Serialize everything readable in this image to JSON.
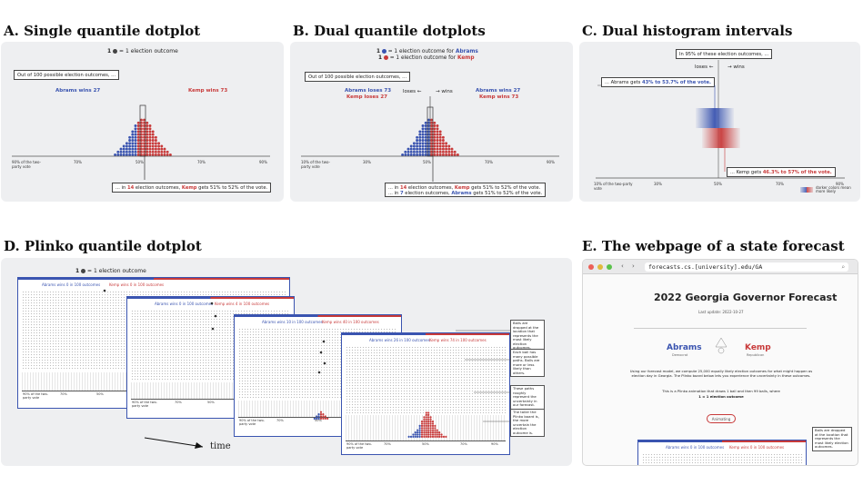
{
  "titles": {
    "a": "A. Single quantile dotplot",
    "b": "B. Dual quantile dotplots",
    "c": "C. Dual histogram intervals",
    "d": "D. Plinko quantile dotplot",
    "e": "E. The webpage of a state forecast"
  },
  "panel_a": {
    "legend": "= 1 election outcome",
    "legend_num": "1",
    "prompt": "Out of 100 possible election outcomes, ...",
    "abrams_wins": "Abrams wins 27",
    "kemp_wins": "Kemp wins 73",
    "ticks": [
      "90% of the two-party vote",
      "70%",
      "50%",
      "70%",
      "90%"
    ],
    "callout_pre": "... in",
    "callout_num": "14",
    "callout_mid": "election outcomes,",
    "callout_name": "Kemp",
    "callout_post": "gets 51% to 52% of the vote."
  },
  "panel_b": {
    "legend1_pre": "= 1 election outcome for",
    "legend1_name": "Abrams",
    "legend2_pre": "= 1 election outcome for",
    "legend2_name": "Kemp",
    "legend_num": "1",
    "prompt": "Out of 100 possible election outcomes, ...",
    "left_label_1": "Abrams loses 73",
    "left_label_2": "Kemp loses 27",
    "right_label_1": "Abrams wins 27",
    "right_label_2": "Kemp wins 73",
    "loses": "loses",
    "wins": "wins",
    "ticks": [
      "10% of the two-party vote",
      "30%",
      "50%",
      "70%",
      "90%"
    ],
    "callout1_pre": "... in",
    "callout1_num": "14",
    "callout1_mid": "election outcomes,",
    "callout1_name": "Kemp",
    "callout1_post": "gets 51% to 52% of the vote.",
    "callout2_pre": "... in",
    "callout2_num": "7",
    "callout2_mid": "election outcomes,",
    "callout2_name": "Abrams",
    "callout2_post": "gets 51% to 52% of the vote."
  },
  "panel_c": {
    "prompt": "In 95% of these election outcomes, ...",
    "loses": "loses",
    "wins": "wins",
    "abrams_pre": "... Abrams gets",
    "abrams_range": "43% to 53.7% of the vote.",
    "kemp_pre": "... Kemp gets",
    "kemp_range": "46.3% to 57% of the vote.",
    "ticks": [
      "10% of the two-party vote",
      "30%",
      "50%",
      "70%",
      "90%"
    ],
    "legend": "darker colors mean more likely"
  },
  "panel_d": {
    "legend": "= 1 election outcome",
    "legend_num": "1",
    "frames": [
      {
        "blue": "Abrams wins 0 in 100 outcomes",
        "red": "Kemp wins 0 in 100 outcomes"
      },
      {
        "blue": "Abrams wins 0 in 100 outcomes",
        "red": "Kemp wins 4 in 100 outcomes"
      },
      {
        "blue": "Abrams wins 10 in 100 outcomes",
        "red": "Kemp wins 40 in 100 outcomes"
      },
      {
        "blue": "Abrams wins 26 in 100 outcomes",
        "red": "Kemp wins 74 in 100 outcomes"
      }
    ],
    "ticks": [
      "90% of the two-party vote",
      "70%",
      "50%",
      "70%",
      "90%"
    ],
    "notes": [
      "Balls are dropped at the location that represents the most likely election outcomes.",
      "Each ball has many possible paths. Balls are more or less likely than others.",
      "These paths roughly represent the uncertainty in our forecast.",
      "The taller the Plinko board is, the more uncertain the election outcome is."
    ],
    "time": "time"
  },
  "panel_e": {
    "url": "forecasts.cs.[university].edu/GA",
    "heading": "2022 Georgia Governor Forecast",
    "updated": "Last update: 2022-10-27",
    "abrams": "Abrams",
    "abrams_party": "Democrat",
    "kemp": "Kemp",
    "kemp_party": "Republican",
    "body1": "Using our forecast model, we compute 25,000 equally likely election outcomes for what might happen as election day in Georgia. The Plinko board below lets you experience the uncertainty in these outcomes.",
    "body2": "This is a Plinko animation that draws 1 ball and then 99 balls, where",
    "body3": "1 = 1 election outcome",
    "button": "Animating",
    "frame_blue": "Abrams wins 0 in 100 outcomes",
    "frame_red": "Kemp wins 0 in 100 outcomes",
    "note": "Balls are dropped at the location that represents the most likely election outcomes."
  },
  "colors": {
    "blue": "#3a54b0",
    "red": "#c83a3a"
  }
}
